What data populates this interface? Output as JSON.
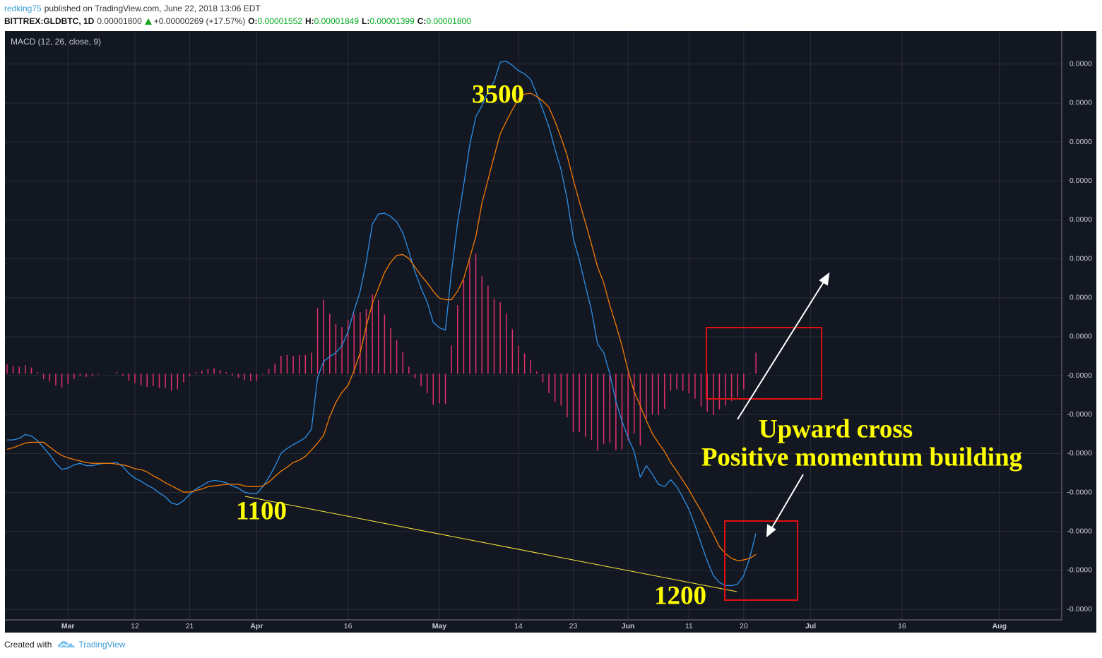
{
  "header": {
    "author": "redking75",
    "published": "published on TradingView.com, June 22, 2018 13:06 EDT",
    "symbol": "BITTREX:GLDBTC, 1D",
    "last": "0.00001800",
    "change": "+0.00000269 (+17.57%)",
    "open_label": "O:",
    "open": "0.00001552",
    "high_label": "H:",
    "high": "0.00001849",
    "low_label": "L:",
    "low": "0.00001399",
    "close_label": "C:",
    "close": "0.00001800"
  },
  "chart_data": {
    "type": "line",
    "title": "MACD (12, 26, close, 9)",
    "grid": true,
    "x": [
      "02-19",
      "02-20",
      "02-21",
      "02-22",
      "02-23",
      "02-24",
      "02-25",
      "02-26",
      "02-27",
      "02-28",
      "03-01",
      "03-02",
      "03-03",
      "03-04",
      "03-05",
      "03-06",
      "03-07",
      "03-08",
      "03-09",
      "03-10",
      "03-11",
      "03-12",
      "03-13",
      "03-14",
      "03-15",
      "03-16",
      "03-17",
      "03-18",
      "03-19",
      "03-20",
      "03-21",
      "03-22",
      "03-23",
      "03-24",
      "03-25",
      "03-26",
      "03-27",
      "03-28",
      "03-29",
      "03-30",
      "03-31",
      "04-01",
      "04-02",
      "04-03",
      "04-04",
      "04-05",
      "04-06",
      "04-07",
      "04-08",
      "04-09",
      "04-10",
      "04-11",
      "04-12",
      "04-13",
      "04-14",
      "04-15",
      "04-16",
      "04-17",
      "04-18",
      "04-19",
      "04-20",
      "04-21",
      "04-22",
      "04-23",
      "04-24",
      "04-25",
      "04-26",
      "04-27",
      "04-28",
      "04-29",
      "04-30",
      "05-01",
      "05-02",
      "05-03",
      "05-04",
      "05-05",
      "05-06",
      "05-07",
      "05-08",
      "05-09",
      "05-10",
      "05-11",
      "05-12",
      "05-13",
      "05-14",
      "05-15",
      "05-16",
      "05-17",
      "05-18",
      "05-19",
      "05-20",
      "05-21",
      "05-22",
      "05-23",
      "05-24",
      "05-25",
      "05-26",
      "05-27",
      "05-28",
      "05-29",
      "05-30",
      "05-31",
      "06-01",
      "06-02",
      "06-03",
      "06-04",
      "06-05",
      "06-06",
      "06-07",
      "06-08",
      "06-09",
      "06-10",
      "06-11",
      "06-12",
      "06-13",
      "06-14",
      "06-15",
      "06-16",
      "06-17",
      "06-18",
      "06-19",
      "06-20",
      "06-21",
      "06-22"
    ],
    "series": [
      {
        "color": "#2a90e8",
        "style": "line",
        "values": [
          -8.5e-08,
          -8.5e-08,
          -8.3e-08,
          -7.8e-08,
          -8e-08,
          -8.6e-08,
          -9.5e-08,
          -1.04e-07,
          -1.15e-07,
          -1.23e-07,
          -1.21e-07,
          -1.17e-07,
          -1.15e-07,
          -1.18e-07,
          -1.18e-07,
          -1.16e-07,
          -1.15e-07,
          -1.15e-07,
          -1.14e-07,
          -1.19e-07,
          -1.28e-07,
          -1.34e-07,
          -1.38e-07,
          -1.43e-07,
          -1.47e-07,
          -1.53e-07,
          -1.58e-07,
          -1.66e-07,
          -1.68e-07,
          -1.63e-07,
          -1.55e-07,
          -1.48e-07,
          -1.44e-07,
          -1.39e-07,
          -1.37e-07,
          -1.38e-07,
          -1.4e-07,
          -1.44e-07,
          -1.47e-07,
          -1.52e-07,
          -1.54e-07,
          -1.54e-07,
          -1.45e-07,
          -1.33e-07,
          -1.19e-07,
          -1.02e-07,
          -9.6e-08,
          -9.1e-08,
          -8.7e-08,
          -8.2e-08,
          -7.1e-08,
          -5e-09,
          1.6e-08,
          2.2e-08,
          2.7e-08,
          3.6e-08,
          5.4e-08,
          8.1e-08,
          1.06e-07,
          1.44e-07,
          1.92e-07,
          2.05e-07,
          2.06e-07,
          2.02e-07,
          1.95e-07,
          1.81e-07,
          1.57e-07,
          1.31e-07,
          1.1e-07,
          9.2e-08,
          6.6e-08,
          5.9e-08,
          5.6e-08,
          1.31e-07,
          1.94e-07,
          2.42e-07,
          2.94e-07,
          3.3e-07,
          3.44e-07,
          3.62e-07,
          3.75e-07,
          4e-07,
          4.01e-07,
          3.96e-07,
          3.89e-07,
          3.85e-07,
          3.78e-07,
          3.59e-07,
          3.39e-07,
          3.17e-07,
          2.88e-07,
          2.62e-07,
          2.24e-07,
          1.74e-07,
          1.46e-07,
          1.13e-07,
          8.1e-08,
          3.8e-08,
          2.7e-08,
          0,
          -3.5e-08,
          -6.1e-08,
          -8.2e-08,
          -1e-07,
          -1.33e-07,
          -1.18e-07,
          -1.29e-07,
          -1.42e-07,
          -1.45e-07,
          -1.36e-07,
          -1.45e-07,
          -1.59e-07,
          -1.74e-07,
          -1.95e-07,
          -2.18e-07,
          -2.4e-07,
          -2.59e-07,
          -2.68e-07,
          -2.72e-07,
          -2.72e-07,
          -2.7e-07,
          -2.59e-07,
          -2.36e-07,
          -2.05e-07
        ]
      },
      {
        "color": "#f57c00",
        "style": "line",
        "values": [
          -9.7e-08,
          -9.5e-08,
          -9.2e-08,
          -8.9e-08,
          -8.8e-08,
          -8.8e-08,
          -8.8e-08,
          -9.4e-08,
          -1e-07,
          -1.05e-07,
          -1.08e-07,
          -1.1e-07,
          -1.12e-07,
          -1.14e-07,
          -1.15e-07,
          -1.15e-07,
          -1.15e-07,
          -1.15e-07,
          -1.16e-07,
          -1.17e-07,
          -1.19e-07,
          -1.22e-07,
          -1.23e-07,
          -1.26e-07,
          -1.31e-07,
          -1.35e-07,
          -1.4e-07,
          -1.44e-07,
          -1.48e-07,
          -1.52e-07,
          -1.52e-07,
          -1.5e-07,
          -1.48e-07,
          -1.45e-07,
          -1.44e-07,
          -1.43e-07,
          -1.42e-07,
          -1.42e-07,
          -1.42e-07,
          -1.44e-07,
          -1.45e-07,
          -1.45e-07,
          -1.44e-07,
          -1.39e-07,
          -1.32e-07,
          -1.25e-07,
          -1.2e-07,
          -1.14e-07,
          -1.11e-07,
          -1.06e-07,
          -9.8e-08,
          -8.9e-08,
          -7.9e-08,
          -5.5e-08,
          -3.7e-08,
          -2.4e-08,
          -1.5e-08,
          4e-09,
          2.7e-08,
          6.1e-08,
          9e-08,
          1.1e-07,
          1.3e-07,
          1.43e-07,
          1.52e-07,
          1.53e-07,
          1.48e-07,
          1.37e-07,
          1.26e-07,
          1.17e-07,
          1.06e-07,
          9.7e-08,
          9.5e-08,
          9.5e-08,
          1.06e-07,
          1.22e-07,
          1.49e-07,
          1.76e-07,
          2.19e-07,
          2.49e-07,
          2.79e-07,
          3.08e-07,
          3.24e-07,
          3.39e-07,
          3.53e-07,
          3.59e-07,
          3.6e-07,
          3.56e-07,
          3.5e-07,
          3.42e-07,
          3.24e-07,
          3.03e-07,
          2.8e-07,
          2.49e-07,
          2.21e-07,
          1.94e-07,
          1.66e-07,
          1.37e-07,
          1.17e-07,
          8.8e-08,
          6.3e-08,
          3.6e-08,
          4e-09,
          -2.3e-08,
          -4.1e-08,
          -6e-08,
          -7.7e-08,
          -8.9e-08,
          -1e-07,
          -1.14e-07,
          -1.25e-07,
          -1.37e-07,
          -1.49e-07,
          -1.63e-07,
          -1.76e-07,
          -1.91e-07,
          -2.06e-07,
          -2.22e-07,
          -2.31e-07,
          -2.37e-07,
          -2.4e-07,
          -2.39e-07,
          -2.37e-07,
          -2.32e-07
        ]
      },
      {
        "color": "#e0306a",
        "style": "histogram",
        "values": [
          1.2e-08,
          1e-08,
          9e-09,
          1.1e-08,
          8e-09,
          2e-09,
          -7e-09,
          -1e-08,
          -1.5e-08,
          -1.8e-08,
          -1.3e-08,
          -7e-09,
          -3e-09,
          -4e-09,
          -3e-09,
          -1e-09,
          0,
          0,
          2e-09,
          -2e-09,
          -9e-09,
          -1.2e-08,
          -1.5e-08,
          -1.7e-08,
          -1.6e-08,
          -1.8e-08,
          -1.8e-08,
          -2.2e-08,
          -2e-08,
          -1.1e-08,
          -3e-09,
          2e-09,
          4e-09,
          6e-09,
          7e-09,
          5e-09,
          2e-09,
          -2e-09,
          -5e-09,
          -8e-09,
          -9e-09,
          -9e-09,
          -1e-09,
          6e-09,
          1.3e-08,
          2.3e-08,
          2.4e-08,
          2.3e-08,
          2.4e-08,
          2.4e-08,
          2.7e-08,
          8.4e-08,
          9.5e-08,
          7.7e-08,
          6.4e-08,
          6e-08,
          6.9e-08,
          7.7e-08,
          7.9e-08,
          8.3e-08,
          1.02e-07,
          9.5e-08,
          7.6e-08,
          5.9e-08,
          4.3e-08,
          2.8e-08,
          9e-09,
          -6e-09,
          -1.6e-08,
          -2.5e-08,
          -4e-08,
          -3.8e-08,
          -3.9e-08,
          3.6e-08,
          8.8e-08,
          1.2e-07,
          1.45e-07,
          1.54e-07,
          1.25e-07,
          1.13e-07,
          9.6e-08,
          9.2e-08,
          7.7e-08,
          5.7e-08,
          3.6e-08,
          2.6e-08,
          1.8e-08,
          3e-09,
          -1.1e-08,
          -2.5e-08,
          -3.6e-08,
          -4.1e-08,
          -5.6e-08,
          -7.5e-08,
          -7.5e-08,
          -8.1e-08,
          -8.5e-08,
          -9.9e-08,
          -9e-08,
          -8.8e-08,
          -9.8e-08,
          -9.7e-08,
          -8.6e-08,
          -7.7e-08,
          -9.2e-08,
          -5.8e-08,
          -5.2e-08,
          -5.3e-08,
          -4.5e-08,
          -2.2e-08,
          -2e-08,
          -2.2e-08,
          -2.5e-08,
          -3.2e-08,
          -4.2e-08,
          -4.9e-08,
          -5.3e-08,
          -4.6e-08,
          -4.1e-08,
          -3.5e-08,
          -3e-08,
          -2e-08,
          1e-09,
          2.7e-08
        ]
      }
    ],
    "xlim": [
      "02-19",
      "08-11"
    ],
    "xticks": [
      {
        "value": "03-01",
        "label": "Mar"
      },
      {
        "value": "03-12",
        "label": "12"
      },
      {
        "value": "03-21",
        "label": "21"
      },
      {
        "value": "04-01",
        "label": "Apr"
      },
      {
        "value": "04-16",
        "label": "16"
      },
      {
        "value": "05-01",
        "label": "May"
      },
      {
        "value": "05-14",
        "label": "14"
      },
      {
        "value": "05-23",
        "label": "23"
      },
      {
        "value": "06-01",
        "label": "Jun"
      },
      {
        "value": "06-11",
        "label": "11"
      },
      {
        "value": "06-20",
        "label": "20"
      },
      {
        "value": "07-01",
        "label": "Jul"
      },
      {
        "value": "07-16",
        "label": "16"
      },
      {
        "value": "08-01",
        "label": "Aug"
      }
    ],
    "ylim": [
      -3.16e-07,
      4.39e-07
    ],
    "yticks": [
      {
        "value": 3.975e-07,
        "label": "0.0000"
      },
      {
        "value": 3.475e-07,
        "label": "0.0000"
      },
      {
        "value": 2.975e-07,
        "label": "0.0000"
      },
      {
        "value": 2.475e-07,
        "label": "0.0000"
      },
      {
        "value": 1.975e-07,
        "label": "0.0000"
      },
      {
        "value": 1.475e-07,
        "label": "0.0000"
      },
      {
        "value": 9.75e-08,
        "label": "0.0000"
      },
      {
        "value": 4.75e-08,
        "label": "0.0000"
      },
      {
        "value": -2.5e-09,
        "label": "-0.0000"
      },
      {
        "value": -5.25e-08,
        "label": "-0.0000"
      },
      {
        "value": -1.025e-07,
        "label": "-0.0000"
      },
      {
        "value": -1.525e-07,
        "label": "-0.0000"
      },
      {
        "value": -2.025e-07,
        "label": "-0.0000"
      },
      {
        "value": -2.525e-07,
        "label": "-0.0000"
      },
      {
        "value": -3.025e-07,
        "label": "-0.0000"
      }
    ],
    "annotations": [
      "3500",
      "1100",
      "1200",
      "Upward cross",
      "Positive momentum building"
    ]
  },
  "footer": {
    "created": "Created with",
    "brand": "TradingView"
  }
}
